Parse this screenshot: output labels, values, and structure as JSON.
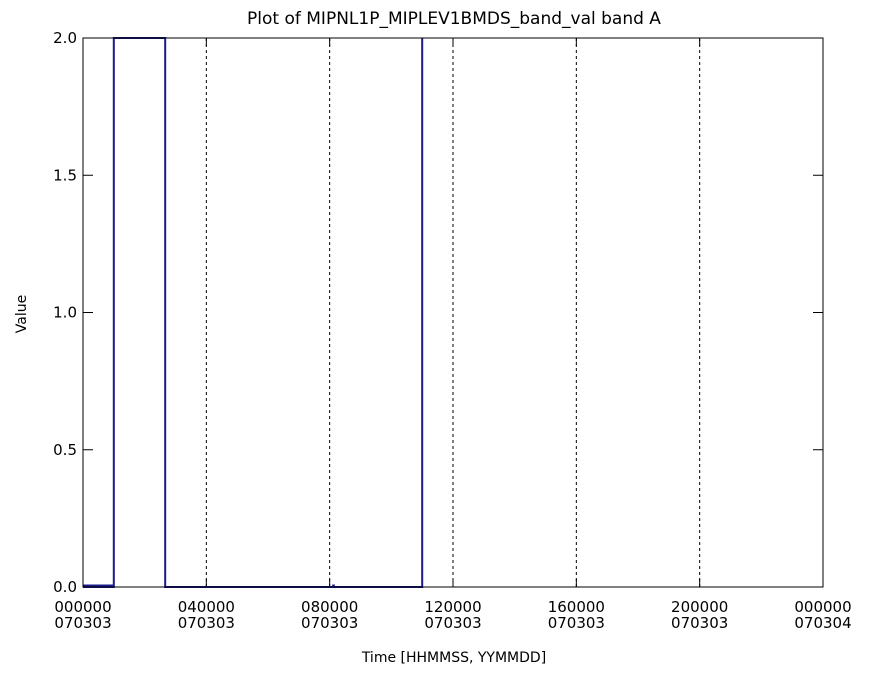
{
  "chart_data": {
    "type": "line",
    "title": "Plot of MIPNL1P_MIPLEV1BMDS_band_val band A",
    "xlabel": "Time [HHMMSS, YYMMDD]",
    "ylabel": "Value",
    "xlim": [
      "2007-03-03T00:00:00",
      "2007-03-04T00:00:00"
    ],
    "ylim": [
      0,
      2
    ],
    "x_ticks": [
      {
        "time": "000000",
        "date": "070303"
      },
      {
        "time": "040000",
        "date": "070303"
      },
      {
        "time": "080000",
        "date": "070303"
      },
      {
        "time": "120000",
        "date": "070303"
      },
      {
        "time": "160000",
        "date": "070303"
      },
      {
        "time": "200000",
        "date": "070303"
      },
      {
        "time": "000000",
        "date": "070304"
      }
    ],
    "y_ticks": [
      "0.0",
      "0.5",
      "1.0",
      "1.5",
      "2.0"
    ],
    "grid": "x-dashed",
    "series_color": "#1a1a8c",
    "series": [
      {
        "x": [
          "2007-03-03T00:00:00",
          "2007-03-03T01:00:00",
          "2007-03-03T01:00:00",
          "2007-03-03T02:40:00",
          "2007-03-03T02:40:00",
          "2007-03-03T11:00:00",
          "2007-03-03T11:00:00"
        ],
        "y": [
          0,
          0,
          2,
          2,
          0,
          0,
          2
        ]
      }
    ],
    "other_marks": [
      {
        "type": "short_segment",
        "x": [
          "2007-03-03T00:00:00",
          "2007-03-03T01:00:00"
        ],
        "y": [
          0,
          0
        ]
      },
      {
        "type": "short_segment",
        "x": [
          "2007-03-03T08:05:00",
          "2007-03-03T08:10:00"
        ],
        "y": [
          0,
          0
        ]
      }
    ]
  }
}
